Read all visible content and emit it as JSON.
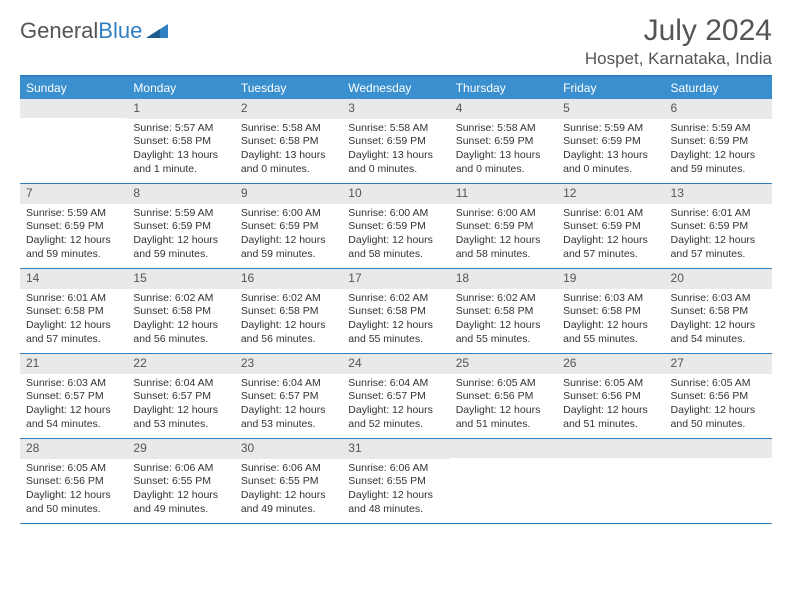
{
  "brand": {
    "part1": "General",
    "part2": "Blue"
  },
  "title": "July 2024",
  "location": "Hospet, Karnataka, India",
  "colors": {
    "header_bg": "#3a8fcf",
    "header_text": "#ffffff",
    "border": "#2f7fc2",
    "daynum_bg": "#e9e9e9",
    "text": "#333333",
    "muted": "#555555",
    "page_bg": "#ffffff"
  },
  "typography": {
    "title_fontsize": 30,
    "location_fontsize": 17,
    "dow_fontsize": 12,
    "daynum_fontsize": 12,
    "body_fontsize": 10.5,
    "font_family": "Arial"
  },
  "layout": {
    "columns": 7,
    "rows": 5,
    "cell_min_height": 84
  },
  "days_of_week": [
    "Sunday",
    "Monday",
    "Tuesday",
    "Wednesday",
    "Thursday",
    "Friday",
    "Saturday"
  ],
  "weeks": [
    [
      {
        "date": null
      },
      {
        "date": 1,
        "sunrise": "5:57 AM",
        "sunset": "6:58 PM",
        "daylight": "13 hours and 1 minute."
      },
      {
        "date": 2,
        "sunrise": "5:58 AM",
        "sunset": "6:58 PM",
        "daylight": "13 hours and 0 minutes."
      },
      {
        "date": 3,
        "sunrise": "5:58 AM",
        "sunset": "6:59 PM",
        "daylight": "13 hours and 0 minutes."
      },
      {
        "date": 4,
        "sunrise": "5:58 AM",
        "sunset": "6:59 PM",
        "daylight": "13 hours and 0 minutes."
      },
      {
        "date": 5,
        "sunrise": "5:59 AM",
        "sunset": "6:59 PM",
        "daylight": "13 hours and 0 minutes."
      },
      {
        "date": 6,
        "sunrise": "5:59 AM",
        "sunset": "6:59 PM",
        "daylight": "12 hours and 59 minutes."
      }
    ],
    [
      {
        "date": 7,
        "sunrise": "5:59 AM",
        "sunset": "6:59 PM",
        "daylight": "12 hours and 59 minutes."
      },
      {
        "date": 8,
        "sunrise": "5:59 AM",
        "sunset": "6:59 PM",
        "daylight": "12 hours and 59 minutes."
      },
      {
        "date": 9,
        "sunrise": "6:00 AM",
        "sunset": "6:59 PM",
        "daylight": "12 hours and 59 minutes."
      },
      {
        "date": 10,
        "sunrise": "6:00 AM",
        "sunset": "6:59 PM",
        "daylight": "12 hours and 58 minutes."
      },
      {
        "date": 11,
        "sunrise": "6:00 AM",
        "sunset": "6:59 PM",
        "daylight": "12 hours and 58 minutes."
      },
      {
        "date": 12,
        "sunrise": "6:01 AM",
        "sunset": "6:59 PM",
        "daylight": "12 hours and 57 minutes."
      },
      {
        "date": 13,
        "sunrise": "6:01 AM",
        "sunset": "6:59 PM",
        "daylight": "12 hours and 57 minutes."
      }
    ],
    [
      {
        "date": 14,
        "sunrise": "6:01 AM",
        "sunset": "6:58 PM",
        "daylight": "12 hours and 57 minutes."
      },
      {
        "date": 15,
        "sunrise": "6:02 AM",
        "sunset": "6:58 PM",
        "daylight": "12 hours and 56 minutes."
      },
      {
        "date": 16,
        "sunrise": "6:02 AM",
        "sunset": "6:58 PM",
        "daylight": "12 hours and 56 minutes."
      },
      {
        "date": 17,
        "sunrise": "6:02 AM",
        "sunset": "6:58 PM",
        "daylight": "12 hours and 55 minutes."
      },
      {
        "date": 18,
        "sunrise": "6:02 AM",
        "sunset": "6:58 PM",
        "daylight": "12 hours and 55 minutes."
      },
      {
        "date": 19,
        "sunrise": "6:03 AM",
        "sunset": "6:58 PM",
        "daylight": "12 hours and 55 minutes."
      },
      {
        "date": 20,
        "sunrise": "6:03 AM",
        "sunset": "6:58 PM",
        "daylight": "12 hours and 54 minutes."
      }
    ],
    [
      {
        "date": 21,
        "sunrise": "6:03 AM",
        "sunset": "6:57 PM",
        "daylight": "12 hours and 54 minutes."
      },
      {
        "date": 22,
        "sunrise": "6:04 AM",
        "sunset": "6:57 PM",
        "daylight": "12 hours and 53 minutes."
      },
      {
        "date": 23,
        "sunrise": "6:04 AM",
        "sunset": "6:57 PM",
        "daylight": "12 hours and 53 minutes."
      },
      {
        "date": 24,
        "sunrise": "6:04 AM",
        "sunset": "6:57 PM",
        "daylight": "12 hours and 52 minutes."
      },
      {
        "date": 25,
        "sunrise": "6:05 AM",
        "sunset": "6:56 PM",
        "daylight": "12 hours and 51 minutes."
      },
      {
        "date": 26,
        "sunrise": "6:05 AM",
        "sunset": "6:56 PM",
        "daylight": "12 hours and 51 minutes."
      },
      {
        "date": 27,
        "sunrise": "6:05 AM",
        "sunset": "6:56 PM",
        "daylight": "12 hours and 50 minutes."
      }
    ],
    [
      {
        "date": 28,
        "sunrise": "6:05 AM",
        "sunset": "6:56 PM",
        "daylight": "12 hours and 50 minutes."
      },
      {
        "date": 29,
        "sunrise": "6:06 AM",
        "sunset": "6:55 PM",
        "daylight": "12 hours and 49 minutes."
      },
      {
        "date": 30,
        "sunrise": "6:06 AM",
        "sunset": "6:55 PM",
        "daylight": "12 hours and 49 minutes."
      },
      {
        "date": 31,
        "sunrise": "6:06 AM",
        "sunset": "6:55 PM",
        "daylight": "12 hours and 48 minutes."
      },
      {
        "date": null
      },
      {
        "date": null
      },
      {
        "date": null
      }
    ]
  ],
  "labels": {
    "sunrise": "Sunrise:",
    "sunset": "Sunset:",
    "daylight": "Daylight:"
  }
}
